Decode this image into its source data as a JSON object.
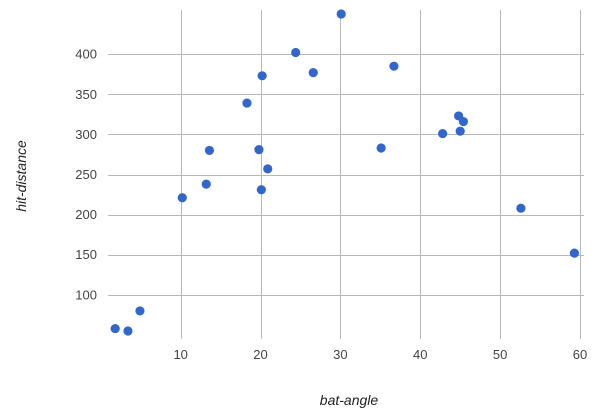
{
  "chart_data": {
    "type": "scatter",
    "xlabel": "bat-angle",
    "ylabel": "hit-distance",
    "xlim": [
      0.9,
      60.5
    ],
    "ylim": [
      45,
      455
    ],
    "x_ticks": [
      10,
      20,
      30,
      40,
      50,
      60
    ],
    "y_ticks": [
      100,
      150,
      200,
      250,
      300,
      350,
      400
    ],
    "grid": true,
    "legend": "none",
    "color": "#3366cc",
    "series": [
      {
        "points": [
          [
            1.8,
            58
          ],
          [
            3.4,
            55
          ],
          [
            4.9,
            80
          ],
          [
            10.2,
            221
          ],
          [
            13.2,
            238
          ],
          [
            13.6,
            280
          ],
          [
            18.3,
            339
          ],
          [
            19.8,
            281
          ],
          [
            20.1,
            231
          ],
          [
            20.2,
            373
          ],
          [
            20.9,
            257
          ],
          [
            24.4,
            402
          ],
          [
            26.6,
            377
          ],
          [
            30.1,
            450
          ],
          [
            35.1,
            283
          ],
          [
            36.7,
            385
          ],
          [
            42.8,
            301
          ],
          [
            44.8,
            323
          ],
          [
            45.0,
            304
          ],
          [
            45.4,
            316
          ],
          [
            52.6,
            208
          ],
          [
            59.3,
            152
          ]
        ]
      }
    ]
  }
}
